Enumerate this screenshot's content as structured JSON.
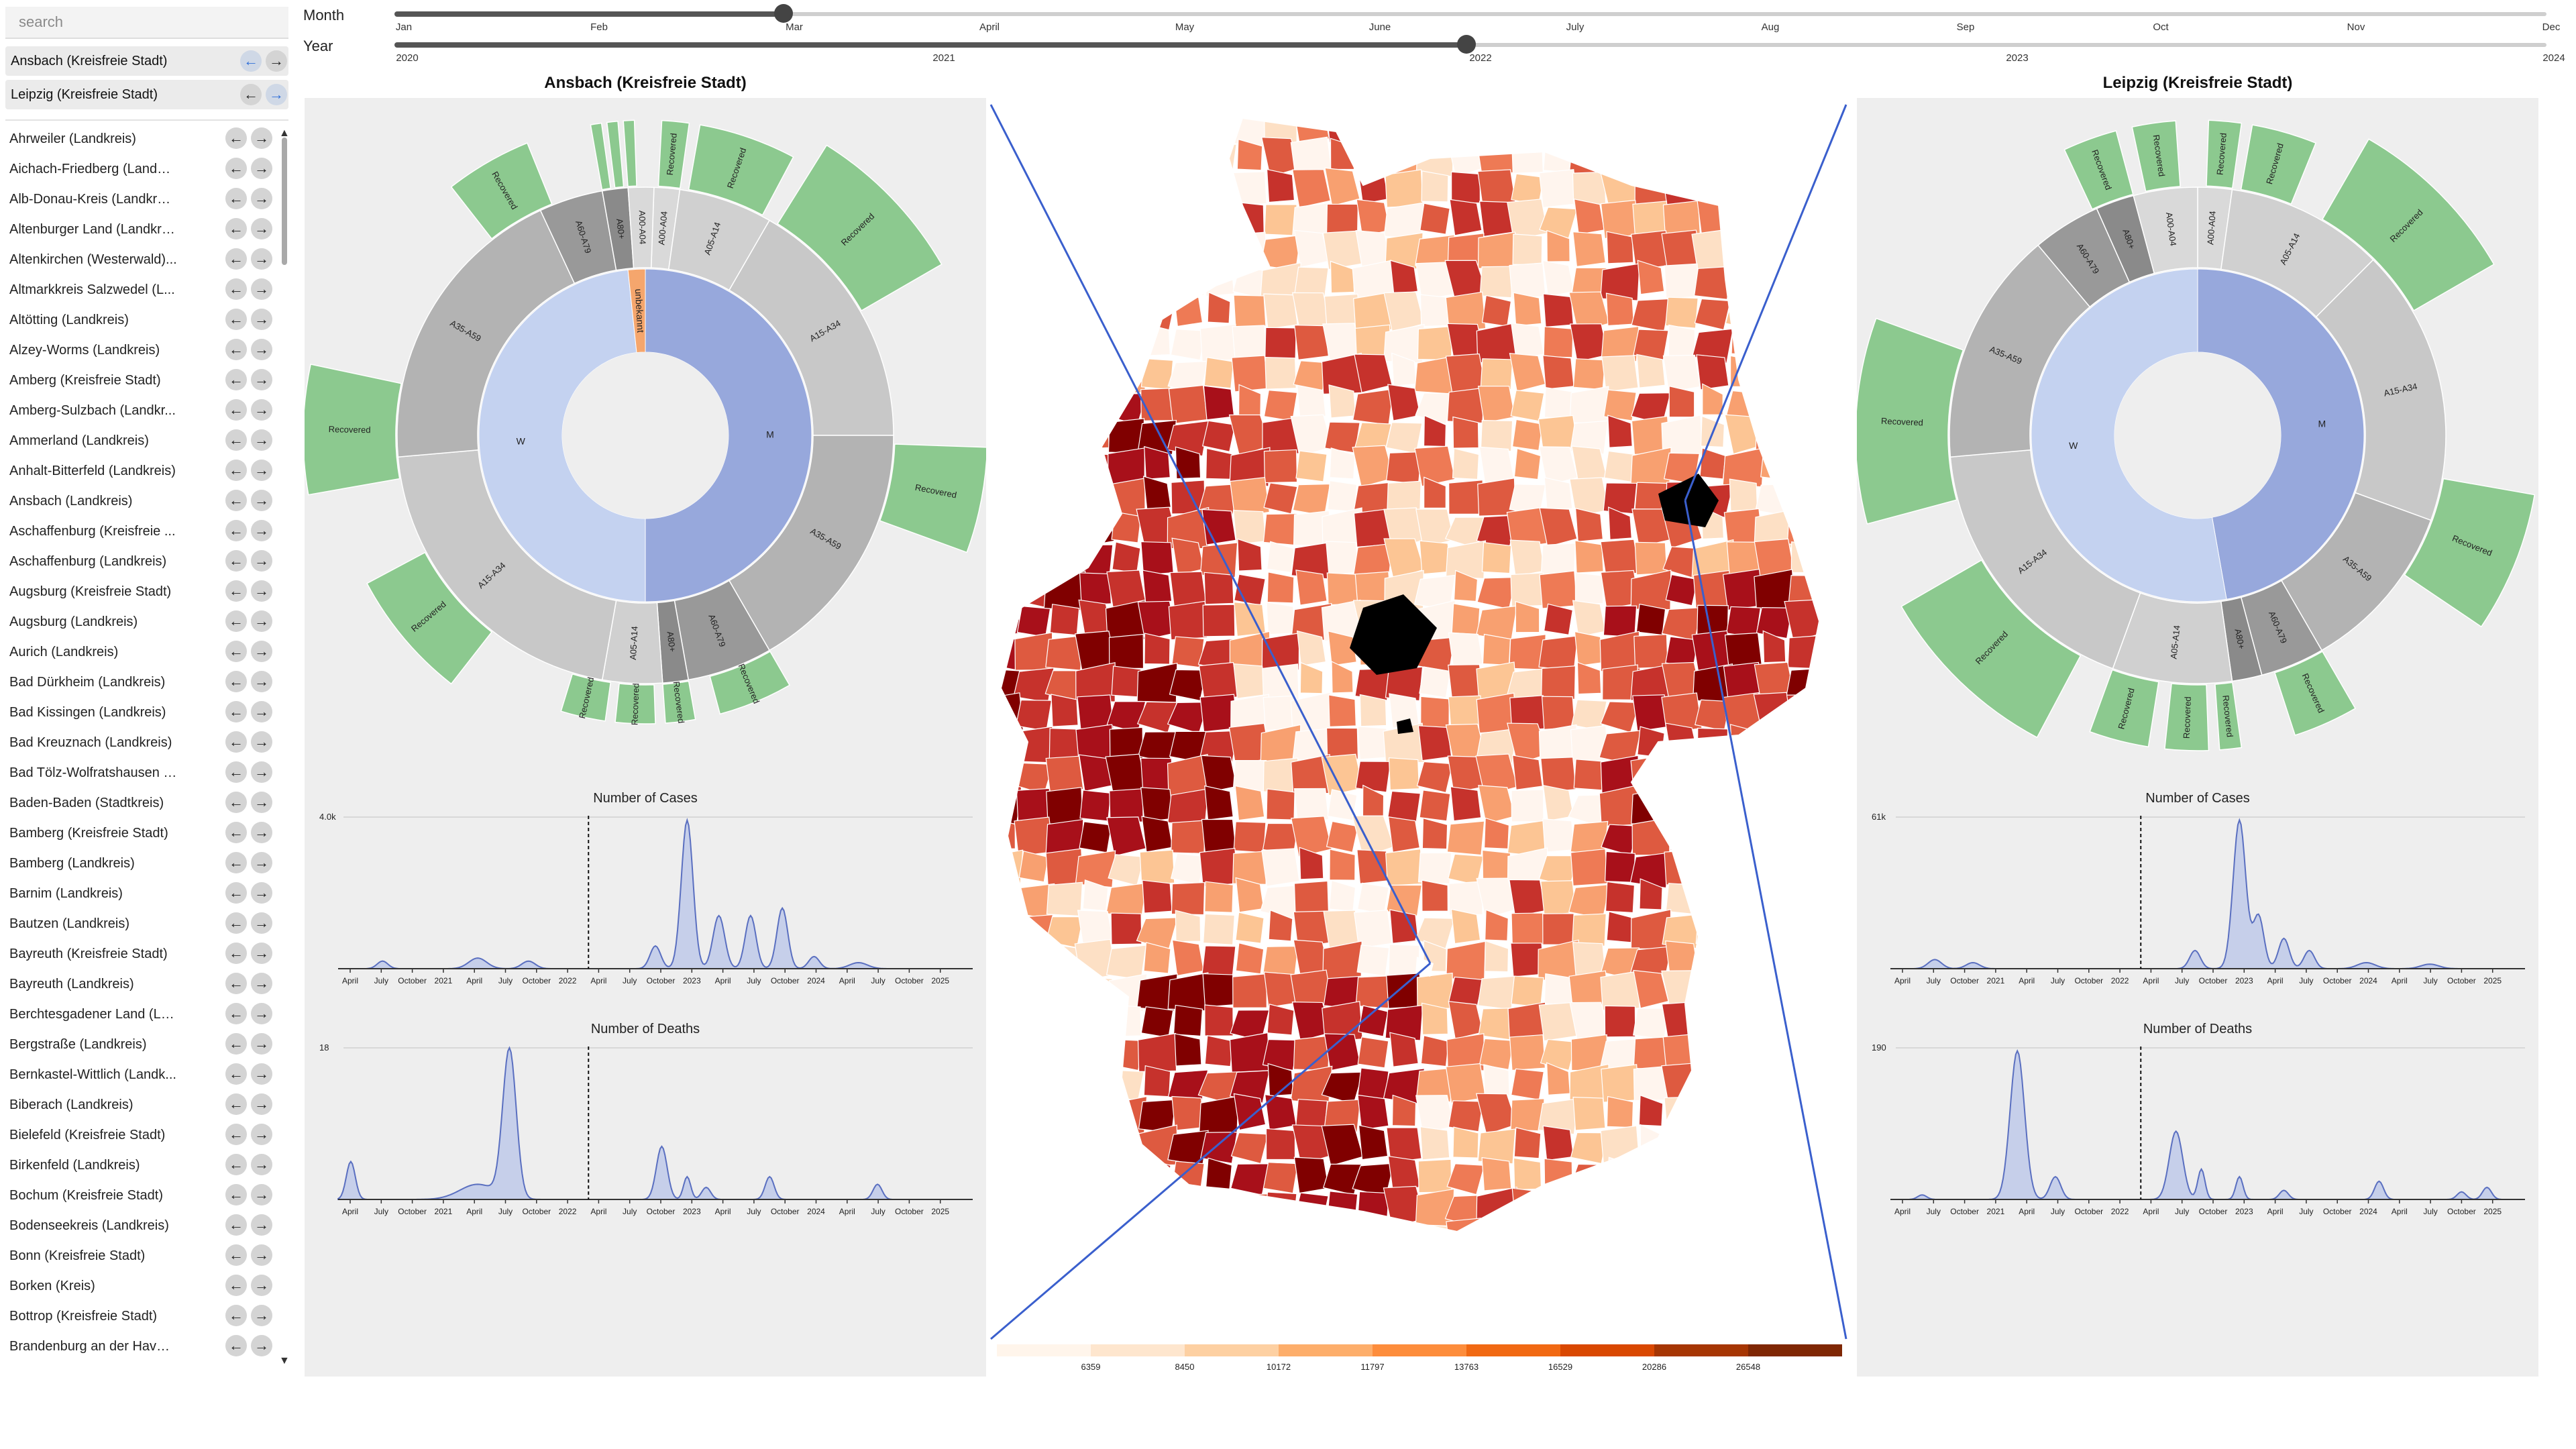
{
  "search": {
    "placeholder": "search"
  },
  "selected": [
    {
      "label": "Ansbach (Kreisfreie Stadt)"
    },
    {
      "label": "Leipzig (Kreisfreie Stadt)"
    }
  ],
  "regions": [
    "Ahrweiler (Landkreis)",
    "Aichach-Friedberg (Landkr...",
    "Alb-Donau-Kreis (Landkreis)",
    "Altenburger Land (Landkre...",
    "Altenkirchen (Westerwald)...",
    "Altmarkkreis Salzwedel (L...",
    "Altötting (Landkreis)",
    "Alzey-Worms (Landkreis)",
    "Amberg (Kreisfreie Stadt)",
    "Amberg-Sulzbach (Landkr...",
    "Ammerland (Landkreis)",
    "Anhalt-Bitterfeld (Landkreis)",
    "Ansbach (Landkreis)",
    "Aschaffenburg (Kreisfreie ...",
    "Aschaffenburg (Landkreis)",
    "Augsburg (Kreisfreie Stadt)",
    "Augsburg (Landkreis)",
    "Aurich (Landkreis)",
    "Bad Dürkheim (Landkreis)",
    "Bad Kissingen (Landkreis)",
    "Bad Kreuznach (Landkreis)",
    "Bad Tölz-Wolfratshausen (...",
    "Baden-Baden (Stadtkreis)",
    "Bamberg (Kreisfreie Stadt)",
    "Bamberg (Landkreis)",
    "Barnim (Landkreis)",
    "Bautzen (Landkreis)",
    "Bayreuth (Kreisfreie Stadt)",
    "Bayreuth (Landkreis)",
    "Berchtesgadener Land (La...",
    "Bergstraße (Landkreis)",
    "Bernkastel-Wittlich (Landk...",
    "Biberach (Landkreis)",
    "Bielefeld (Kreisfreie Stadt)",
    "Birkenfeld (Landkreis)",
    "Bochum (Kreisfreie Stadt)",
    "Bodenseekreis (Landkreis)",
    "Bonn (Kreisfreie Stadt)",
    "Borken (Kreis)",
    "Bottrop (Kreisfreie Stadt)",
    "Brandenburg an der Havel ..."
  ],
  "timeline": {
    "month_label": "Month",
    "year_label": "Year",
    "months": [
      "Jan",
      "Feb",
      "Mar",
      "April",
      "May",
      "June",
      "July",
      "Aug",
      "Sep",
      "Oct",
      "Nov",
      "Dec"
    ],
    "years": [
      "2020",
      "2021",
      "2022",
      "2023",
      "2024"
    ],
    "selected_month": "Mar",
    "selected_year": "2022"
  },
  "left_panel": {
    "title": "Ansbach (Kreisfreie Stadt)",
    "sunburst": {
      "inner": [
        "W",
        "M",
        "unbekannt"
      ],
      "age_groups": [
        "A00-A04",
        "A05-A14",
        "A15-A34",
        "A35-A59",
        "A60-A79",
        "A80+"
      ],
      "outer_label": "Recovered"
    },
    "cases_chart": {
      "title": "Number of Cases",
      "y_max": "4.0k"
    },
    "deaths_chart": {
      "title": "Number of Deaths",
      "y_max": "18"
    }
  },
  "right_panel": {
    "title": "Leipzig (Kreisfreie Stadt)",
    "sunburst": {
      "inner": [
        "W",
        "M"
      ],
      "age_groups": [
        "A00-A04",
        "A05-A14",
        "A15-A34",
        "A35-A59",
        "A60-A79",
        "A80+"
      ],
      "outer_label": "Recovered"
    },
    "cases_chart": {
      "title": "Number of Cases",
      "y_max": "61k"
    },
    "deaths_chart": {
      "title": "Number of Deaths",
      "y_max": "190"
    }
  },
  "time_axis": [
    "April",
    "July",
    "October",
    "2021",
    "April",
    "July",
    "October",
    "2022",
    "April",
    "July",
    "October",
    "2023",
    "April",
    "July",
    "October",
    "2024",
    "April",
    "July",
    "October",
    "2025"
  ],
  "map": {
    "legend_ticks": [
      "6359",
      "8450",
      "10172",
      "11797",
      "13763",
      "16529",
      "20286",
      "26548"
    ],
    "legend_colors": [
      "#fff5eb",
      "#fee6ce",
      "#fdd0a2",
      "#fdae6b",
      "#fd8d3c",
      "#f16913",
      "#d94801",
      "#a63603",
      "#7f2704"
    ],
    "choropleth_colors": [
      "#fff5ee",
      "#fde0c5",
      "#fcc594",
      "#f8a070",
      "#ee7a55",
      "#de5a40",
      "#c6322c",
      "#a8101a",
      "#800000"
    ],
    "link_color": "#3a5fcd"
  }
}
